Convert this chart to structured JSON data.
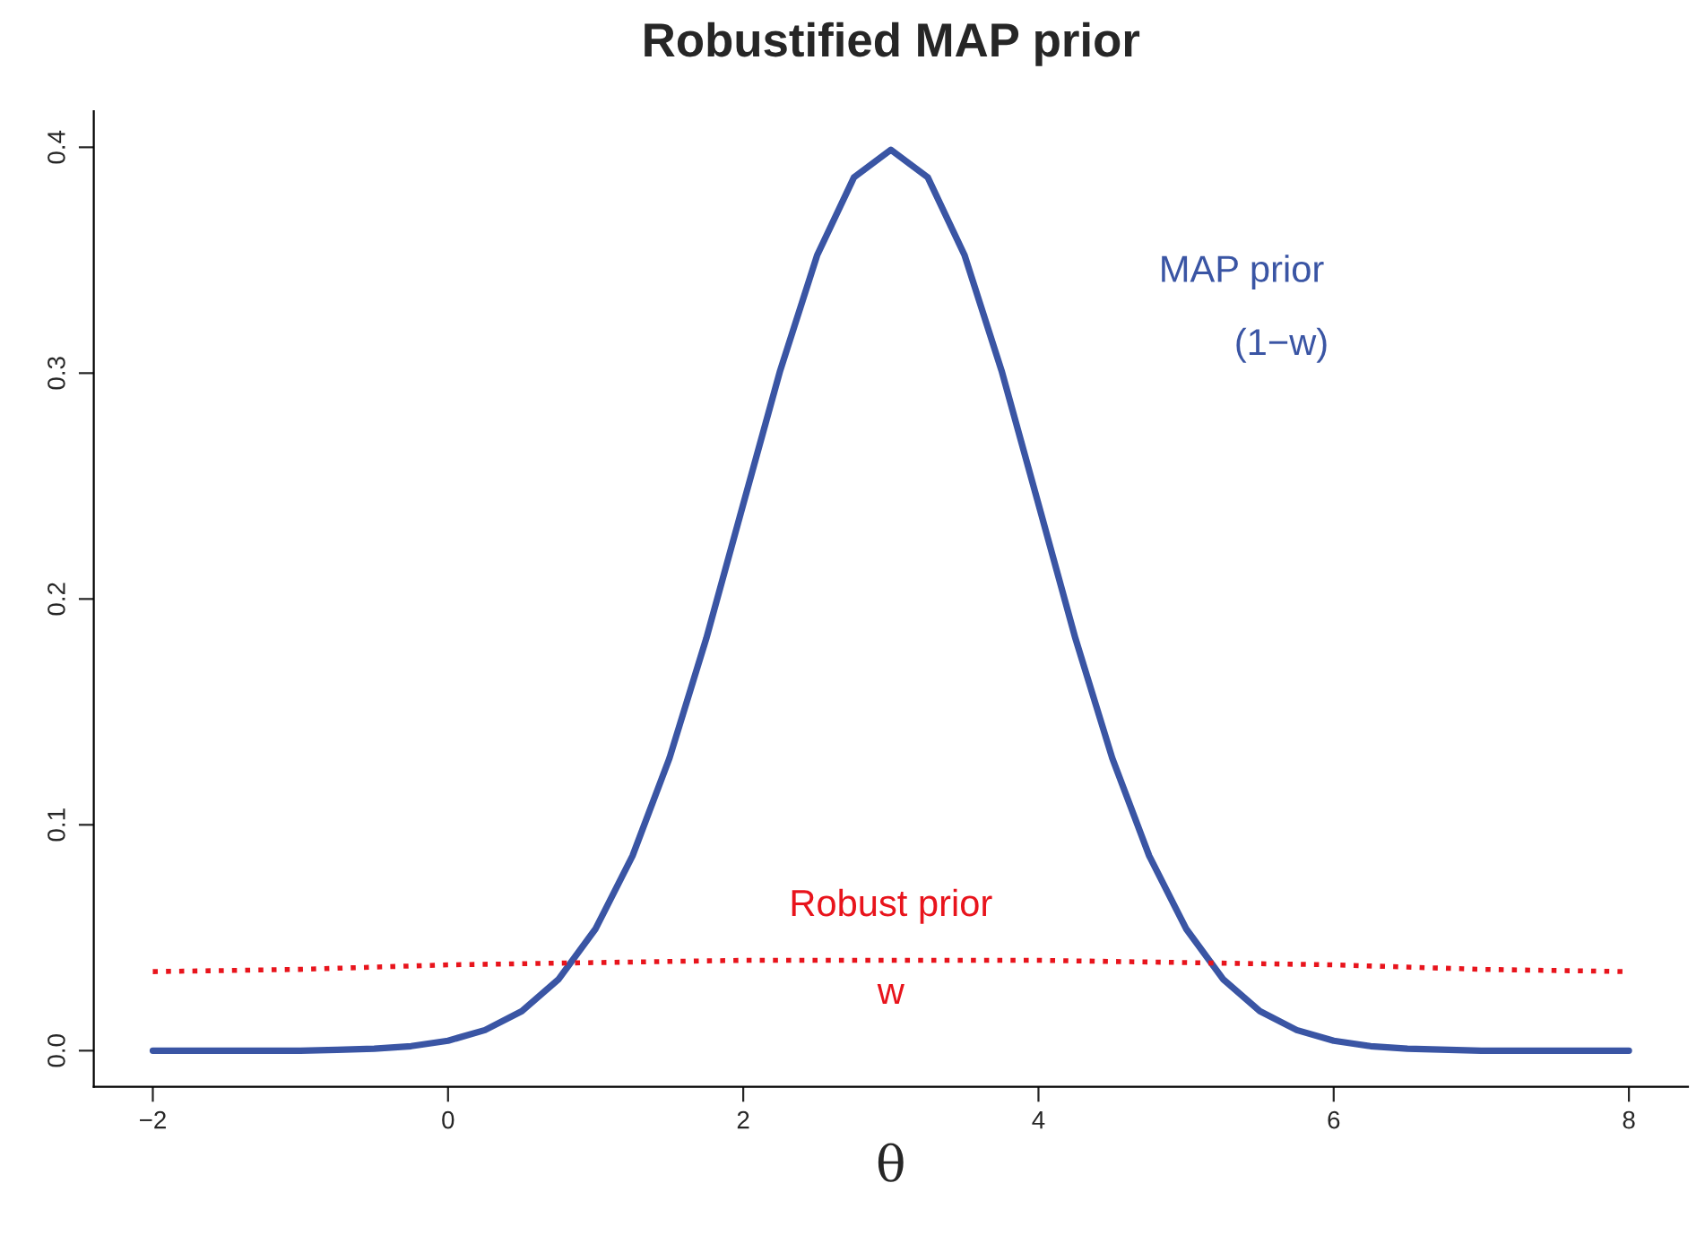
{
  "chart_data": {
    "type": "line",
    "title": "Robustified MAP prior",
    "xlabel": "θ",
    "xlim": [
      -2.4,
      8.4
    ],
    "ylim": [
      -0.016,
      0.416
    ],
    "xticks": [
      {
        "value": -2,
        "label": "−2"
      },
      0,
      2,
      4,
      6,
      8
    ],
    "yticks": [
      {
        "value": 0,
        "label": "0.0"
      },
      0.1,
      0.2,
      0.3,
      0.4
    ],
    "grid": false,
    "legend": false,
    "series": [
      {
        "name": "MAP prior",
        "color": "#3a55a4",
        "line_style": "solid",
        "x": [
          -2,
          -1.5,
          -1,
          -0.75,
          -0.5,
          -0.25,
          0,
          0.25,
          0.5,
          0.75,
          1,
          1.25,
          1.5,
          1.75,
          2,
          2.25,
          2.5,
          2.75,
          3,
          3.25,
          3.5,
          3.75,
          4,
          4.25,
          4.5,
          4.75,
          5,
          5.25,
          5.5,
          5.75,
          6,
          6.25,
          6.5,
          7,
          7.5,
          8
        ],
        "values": [
          0.0,
          0.0,
          0.0,
          0.0004,
          0.0009,
          0.002,
          0.0044,
          0.0091,
          0.0175,
          0.0317,
          0.054,
          0.0863,
          0.1295,
          0.1826,
          0.242,
          0.3011,
          0.3521,
          0.3867,
          0.3989,
          0.3867,
          0.3521,
          0.3011,
          0.242,
          0.1826,
          0.1295,
          0.0863,
          0.054,
          0.0317,
          0.0175,
          0.0091,
          0.0044,
          0.002,
          0.0009,
          0.0,
          0.0,
          0.0
        ]
      },
      {
        "name": "Robust prior",
        "color": "#e8141c",
        "line_style": "dotted",
        "x": [
          -2,
          -1,
          0,
          1,
          2,
          3,
          4,
          5,
          6,
          7,
          8
        ],
        "values": [
          0.035,
          0.036,
          0.038,
          0.039,
          0.04,
          0.04,
          0.04,
          0.039,
          0.038,
          0.036,
          0.035
        ]
      }
    ],
    "annotations": [
      "(1−w)",
      "w"
    ]
  }
}
